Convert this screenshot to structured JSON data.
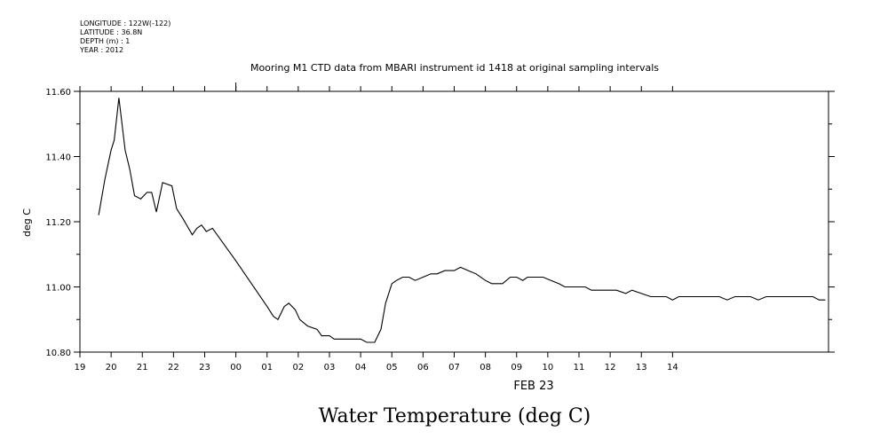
{
  "metadata": [
    "LONGITUDE : 122W(-122)",
    "LATITUDE : 36.8N",
    "DEPTH (m) : 1",
    "YEAR : 2012"
  ],
  "chart_data": {
    "type": "line",
    "title": "Mooring M1 CTD data from MBARI instrument id 1418 at original sampling intervals",
    "ylabel": "deg C",
    "xlabel": "FEB 23",
    "caption": "Water Temperature (deg C)",
    "ylim": [
      10.8,
      11.6
    ],
    "yticks": [
      "10.80",
      "11.00",
      "11.20",
      "11.40",
      "11.60"
    ],
    "xlim_hours": [
      19,
      43
    ],
    "xticks": [
      "19",
      "20",
      "21",
      "22",
      "23",
      "00",
      "01",
      "02",
      "03",
      "04",
      "05",
      "06",
      "07",
      "08",
      "09",
      "10",
      "11",
      "12",
      "13",
      "14"
    ],
    "grid": false,
    "series": [
      {
        "values": [
          [
            19.6,
            11.22
          ],
          [
            19.8,
            11.33
          ],
          [
            20.0,
            11.42
          ],
          [
            20.1,
            11.45
          ],
          [
            20.25,
            11.58
          ],
          [
            20.45,
            11.42
          ],
          [
            20.6,
            11.36
          ],
          [
            20.75,
            11.28
          ],
          [
            20.95,
            11.27
          ],
          [
            21.15,
            11.29
          ],
          [
            21.3,
            11.29
          ],
          [
            21.45,
            11.23
          ],
          [
            21.65,
            11.32
          ],
          [
            21.95,
            11.31
          ],
          [
            22.1,
            11.24
          ],
          [
            22.3,
            11.21
          ],
          [
            22.6,
            11.16
          ],
          [
            22.75,
            11.18
          ],
          [
            22.9,
            11.19
          ],
          [
            23.05,
            11.17
          ],
          [
            23.25,
            11.18
          ],
          [
            24.0,
            11.08
          ],
          [
            25.0,
            10.94
          ],
          [
            25.2,
            10.91
          ],
          [
            25.35,
            10.9
          ],
          [
            25.55,
            10.94
          ],
          [
            25.7,
            10.95
          ],
          [
            25.9,
            10.93
          ],
          [
            26.05,
            10.9
          ],
          [
            26.3,
            10.88
          ],
          [
            26.6,
            10.87
          ],
          [
            26.75,
            10.85
          ],
          [
            27.0,
            10.85
          ],
          [
            27.15,
            10.84
          ],
          [
            27.3,
            10.84
          ],
          [
            27.5,
            10.84
          ],
          [
            27.65,
            10.84
          ],
          [
            27.85,
            10.84
          ],
          [
            28.0,
            10.84
          ],
          [
            28.2,
            10.83
          ],
          [
            28.45,
            10.83
          ],
          [
            28.65,
            10.87
          ],
          [
            28.8,
            10.95
          ],
          [
            29.0,
            11.01
          ],
          [
            29.15,
            11.02
          ],
          [
            29.35,
            11.03
          ],
          [
            29.55,
            11.03
          ],
          [
            29.75,
            11.02
          ],
          [
            30.0,
            11.03
          ],
          [
            30.25,
            11.04
          ],
          [
            30.45,
            11.04
          ],
          [
            30.7,
            11.05
          ],
          [
            31.0,
            11.05
          ],
          [
            31.2,
            11.06
          ],
          [
            31.45,
            11.05
          ],
          [
            31.7,
            11.04
          ],
          [
            32.0,
            11.02
          ],
          [
            32.2,
            11.01
          ],
          [
            32.35,
            11.01
          ],
          [
            32.55,
            11.01
          ],
          [
            32.8,
            11.03
          ],
          [
            33.0,
            11.03
          ],
          [
            33.2,
            11.02
          ],
          [
            33.35,
            11.03
          ],
          [
            33.6,
            11.03
          ],
          [
            33.85,
            11.03
          ],
          [
            34.1,
            11.02
          ],
          [
            34.35,
            11.01
          ],
          [
            34.55,
            11.0
          ],
          [
            34.75,
            11.0
          ],
          [
            35.0,
            11.0
          ],
          [
            35.2,
            11.0
          ],
          [
            35.4,
            10.99
          ],
          [
            35.7,
            10.99
          ],
          [
            35.95,
            10.99
          ],
          [
            36.2,
            10.99
          ],
          [
            36.5,
            10.98
          ],
          [
            36.7,
            10.99
          ],
          [
            37.0,
            10.98
          ],
          [
            37.3,
            10.97
          ],
          [
            37.6,
            10.97
          ],
          [
            37.8,
            10.97
          ],
          [
            38.0,
            10.96
          ],
          [
            38.2,
            10.97
          ],
          [
            38.4,
            10.97
          ],
          [
            38.6,
            10.97
          ],
          [
            38.8,
            10.97
          ],
          [
            39.0,
            10.97
          ],
          [
            39.2,
            10.97
          ],
          [
            39.5,
            10.97
          ],
          [
            39.75,
            10.96
          ],
          [
            40.0,
            10.97
          ],
          [
            40.25,
            10.97
          ],
          [
            40.5,
            10.97
          ],
          [
            40.75,
            10.96
          ],
          [
            41.0,
            10.97
          ],
          [
            41.25,
            10.97
          ],
          [
            41.5,
            10.97
          ],
          [
            41.7,
            10.97
          ],
          [
            41.9,
            10.97
          ],
          [
            42.1,
            10.97
          ],
          [
            42.3,
            10.97
          ],
          [
            42.5,
            10.97
          ],
          [
            42.7,
            10.96
          ],
          [
            42.9,
            10.96
          ]
        ]
      }
    ]
  }
}
